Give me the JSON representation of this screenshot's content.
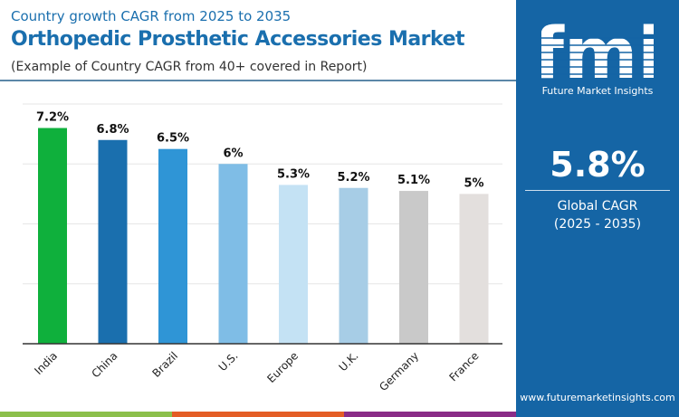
{
  "header": {
    "subtitle": "Country growth CAGR from 2025 to 2035",
    "title": "Orthopedic Prosthetic Accessories Market",
    "note": "(Example of Country CAGR from 40+ covered in Report)"
  },
  "panel": {
    "logo_text": "fmi",
    "brand": "Future Market Insights",
    "cagr": "5.8%",
    "cagr_label": "Global CAGR",
    "cagr_period": "(2025 - 2035)",
    "url": "www.futuremarketinsights.com"
  },
  "colors": {
    "panel": "#1565a5",
    "title": "#1a6fae",
    "stripes": [
      "#8cc04b",
      "#e45d25",
      "#8a2c87"
    ]
  },
  "chart_data": {
    "type": "bar",
    "categories": [
      "India",
      "China",
      "Brazil",
      "U.S.",
      "Europe",
      "U.K.",
      "Germany",
      "France"
    ],
    "values": [
      7.2,
      6.8,
      6.5,
      6,
      5.3,
      5.2,
      5.1,
      5
    ],
    "labels": [
      "7.2%",
      "6.8%",
      "6.5%",
      "6%",
      "5.3%",
      "5.2%",
      "5.1%",
      "5%"
    ],
    "colors": [
      "#0fb03c",
      "#1a6fae",
      "#2f95d6",
      "#7fbde6",
      "#c4e2f4",
      "#a7cde6",
      "#c9c9c9",
      "#e3dfdd"
    ],
    "ylim": [
      0,
      8
    ],
    "grid": true,
    "xlabel": "",
    "ylabel": ""
  }
}
